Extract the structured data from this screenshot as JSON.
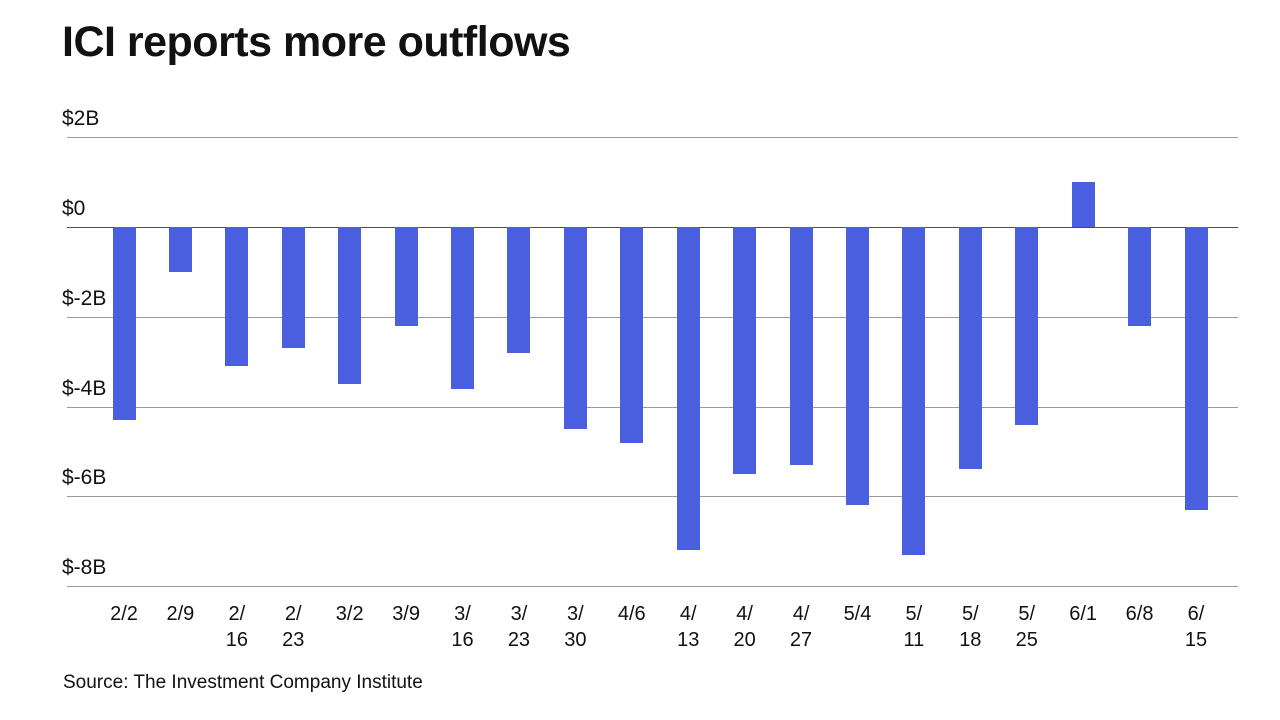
{
  "chart_data": {
    "type": "bar",
    "title": "ICI reports more outflows",
    "source": "Source: The Investment Company Institute",
    "categories": [
      "2/2",
      "2/9",
      "2/16",
      "2/23",
      "3/2",
      "3/9",
      "3/16",
      "3/23",
      "3/30",
      "4/6",
      "4/13",
      "4/20",
      "4/27",
      "5/4",
      "5/11",
      "5/18",
      "5/25",
      "6/1",
      "6/8",
      "6/15"
    ],
    "values": [
      -4.3,
      -1.0,
      -3.1,
      -2.7,
      -3.5,
      -2.2,
      -3.6,
      -2.8,
      -4.5,
      -4.8,
      -7.2,
      -5.5,
      -5.3,
      -6.2,
      -7.3,
      -5.4,
      -4.4,
      1.0,
      -2.2,
      -6.3
    ],
    "units": "billions USD",
    "xlabel": "",
    "ylabel": "",
    "ylim": [
      -8.6,
      2.6
    ],
    "yticks": [
      2,
      0,
      -2,
      -4,
      -6,
      -8
    ],
    "ytick_labels": [
      "$2B",
      "$0",
      "$-2B",
      "$-4B",
      "$-6B",
      "$-8B"
    ],
    "grid": true,
    "legend": false,
    "bar_color": "#4a5ee0",
    "gridline_color": "#9a9a9a",
    "zero_line_color": "#4d4d4d"
  }
}
